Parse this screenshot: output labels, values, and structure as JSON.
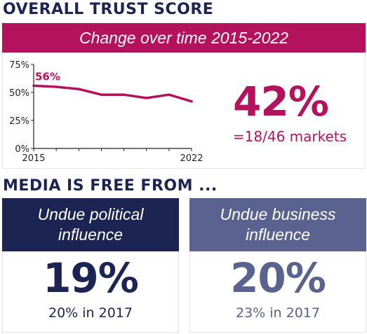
{
  "colors": {
    "magenta": "#b5125e",
    "navy": "#1b2452",
    "slate": "#5a6290",
    "axis": "#222222"
  },
  "overall": {
    "heading": "OVERALL TRUST SCORE",
    "banner": "Change over time 2015-2022",
    "big_value": "42%",
    "markets": "=18/46 markets"
  },
  "chart_data": {
    "type": "line",
    "title": "Change over time 2015-2022",
    "x": [
      2015,
      2016,
      2017,
      2018,
      2019,
      2020,
      2021,
      2022
    ],
    "series": [
      {
        "values": [
          56,
          55,
          53,
          48,
          48,
          45,
          48,
          42
        ]
      }
    ],
    "ylim": [
      0,
      75
    ],
    "y_ticks": [
      "0%",
      "25%",
      "50%",
      "75%"
    ],
    "x_tick_labels": [
      "2015",
      "2022"
    ],
    "annotation": "56%",
    "grid": false
  },
  "media": {
    "heading": "MEDIA IS FREE FROM ...",
    "panels": [
      {
        "title": "Undue political influence",
        "value": "19%",
        "sub": "20% in 2017"
      },
      {
        "title": "Undue business influence",
        "value": "20%",
        "sub": "23% in 2017"
      }
    ]
  }
}
